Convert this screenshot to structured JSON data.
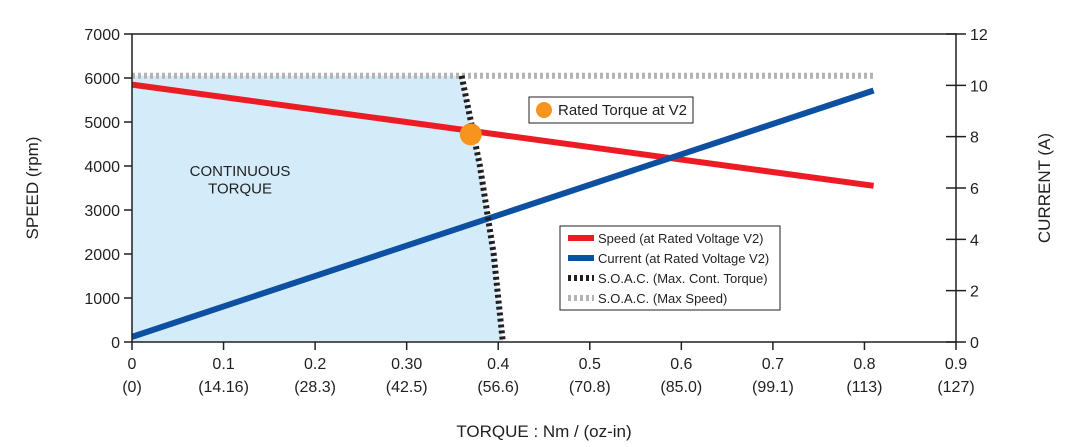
{
  "chart_data": {
    "type": "line",
    "xlabel": "TORQUE : Nm / (oz-in)",
    "ylabel": "SPEED (rpm)",
    "y2label": "CURRENT (A)",
    "xlim": [
      0,
      0.9
    ],
    "ylim": [
      0,
      7000
    ],
    "y2lim": [
      0,
      12
    ],
    "x_ticks": [
      {
        "value": 0,
        "label": "0",
        "sub": "(0)"
      },
      {
        "value": 0.1,
        "label": "0.1",
        "sub": "(14.16)"
      },
      {
        "value": 0.2,
        "label": "0.2",
        "sub": "(28.3)"
      },
      {
        "value": 0.3,
        "label": "0.30",
        "sub": "(42.5)"
      },
      {
        "value": 0.4,
        "label": "0.4",
        "sub": "(56.6)"
      },
      {
        "value": 0.5,
        "label": "0.5",
        "sub": "(70.8)"
      },
      {
        "value": 0.6,
        "label": "0.6",
        "sub": "(85.0)"
      },
      {
        "value": 0.7,
        "label": "0.7",
        "sub": "(99.1)"
      },
      {
        "value": 0.8,
        "label": "0.8",
        "sub": "(113)"
      },
      {
        "value": 0.9,
        "label": "0.9",
        "sub": "(127)"
      }
    ],
    "y_ticks": [
      0,
      1000,
      2000,
      3000,
      4000,
      5000,
      6000,
      7000
    ],
    "y2_ticks": [
      0,
      2,
      4,
      6,
      8,
      10,
      12
    ],
    "series": [
      {
        "name": "Speed (at Rated Voltage V2)",
        "axis": "left",
        "color": "#ed1c24",
        "style": "solid",
        "x": [
          0,
          0.81
        ],
        "y": [
          5850,
          3550
        ]
      },
      {
        "name": "Current (at Rated Voltage V2)",
        "axis": "right",
        "color": "#0d4fa0",
        "style": "solid",
        "x": [
          0,
          0.81
        ],
        "y": [
          0.2,
          9.8
        ]
      },
      {
        "name": "S.O.A.C. (Max. Cont. Torque)",
        "axis": "left",
        "color": "#231f20",
        "style": "dotted",
        "x": [
          0.36,
          0.38,
          0.395,
          0.405
        ],
        "y": [
          6050,
          4000,
          2000,
          0
        ]
      },
      {
        "name": "S.O.A.C. (Max Speed)",
        "axis": "left",
        "color": "#b3b3b3",
        "style": "dotted",
        "x": [
          0,
          0.81
        ],
        "y": [
          6050,
          6050
        ]
      }
    ],
    "region": {
      "label_lines": [
        "CONTINUOUS",
        "TORQUE"
      ],
      "color": "#d4ecf9",
      "x": [
        0,
        0.36,
        0.38,
        0.395,
        0.405,
        0
      ],
      "y": [
        6050,
        6050,
        4000,
        2000,
        0,
        0
      ]
    },
    "marker": {
      "label": "Rated Torque at V2",
      "x": 0.37,
      "y": 4720,
      "color": "#f7941d"
    },
    "legend": {
      "placement": "lower-right"
    },
    "grid": false
  }
}
